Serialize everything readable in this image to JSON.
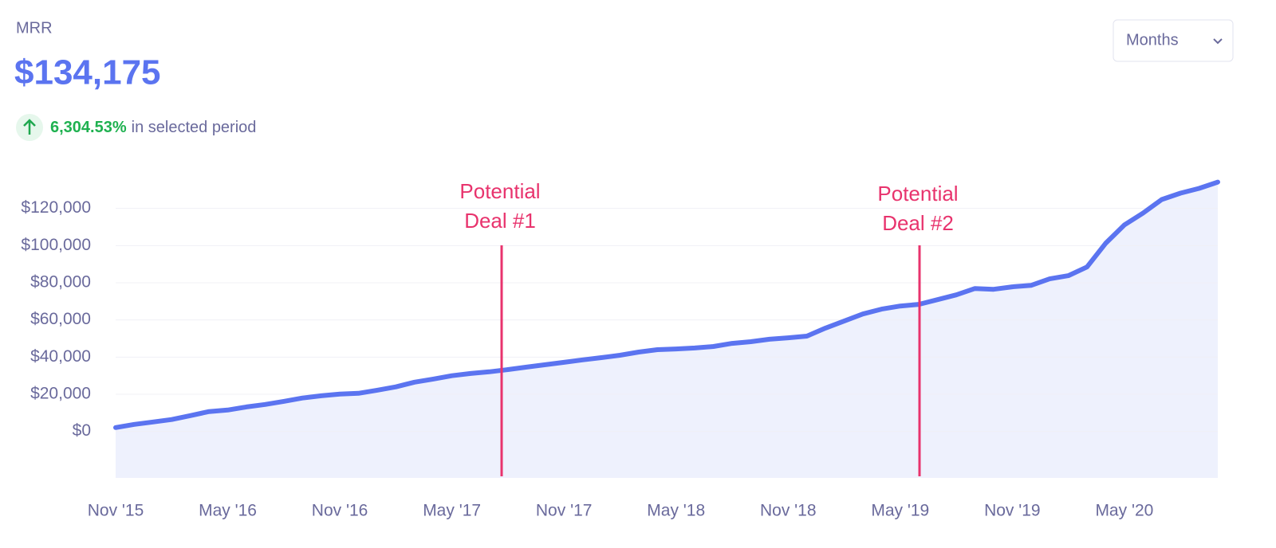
{
  "header": {
    "metric": "MRR",
    "value": "$134,175",
    "change": "6,304.53%",
    "change_text": "in selected period",
    "period_select": "Months"
  },
  "chart_data": {
    "type": "area",
    "categories": [
      "Nov '15",
      null,
      null,
      null,
      null,
      null,
      "May '16",
      null,
      null,
      null,
      null,
      null,
      "Nov '16",
      null,
      null,
      null,
      null,
      null,
      "May '17",
      null,
      null,
      null,
      null,
      null,
      "Nov '17",
      null,
      null,
      null,
      null,
      null,
      "May '18",
      null,
      null,
      null,
      null,
      null,
      "Nov '18",
      null,
      null,
      null,
      null,
      null,
      "May '19",
      null,
      null,
      null,
      null,
      null,
      "Nov '19",
      null,
      null,
      null,
      null,
      null,
      "May '20",
      null,
      null,
      null,
      null,
      null
    ],
    "series": [
      {
        "name": "MRR",
        "color": "#5b74f0",
        "values": [
          2100,
          3800,
          5100,
          6400,
          8500,
          10700,
          11500,
          13200,
          14500,
          16200,
          18000,
          19200,
          20100,
          20500,
          22200,
          24000,
          26500,
          28200,
          30000,
          31200,
          32100,
          33300,
          34600,
          35900,
          37200,
          38500,
          39700,
          41000,
          42700,
          44000,
          44400,
          44900,
          45700,
          47400,
          48300,
          49600,
          50400,
          51300,
          55600,
          59400,
          63200,
          65800,
          67500,
          68400,
          70900,
          73500,
          76900,
          76500,
          77800,
          78600,
          82100,
          83800,
          88500,
          101300,
          111100,
          117500,
          124800,
          128200,
          130800,
          134175
        ]
      }
    ],
    "ylim": [
      -25000,
      140000
    ],
    "yticks": [
      {
        "value": 0,
        "label": "$0"
      },
      {
        "value": 20000,
        "label": "$20,000"
      },
      {
        "value": 40000,
        "label": "$40,000"
      },
      {
        "value": 60000,
        "label": "$60,000"
      },
      {
        "value": 80000,
        "label": "$80,000"
      },
      {
        "value": 100000,
        "label": "$100,000"
      },
      {
        "value": 120000,
        "label": "$120,000"
      }
    ],
    "grid": true,
    "annotations": [
      {
        "lines": [
          "Potential",
          "Deal #1"
        ],
        "color": "#e8336d"
      },
      {
        "lines": [
          "Potential",
          "Deal #2"
        ],
        "color": "#e8336d"
      }
    ]
  }
}
